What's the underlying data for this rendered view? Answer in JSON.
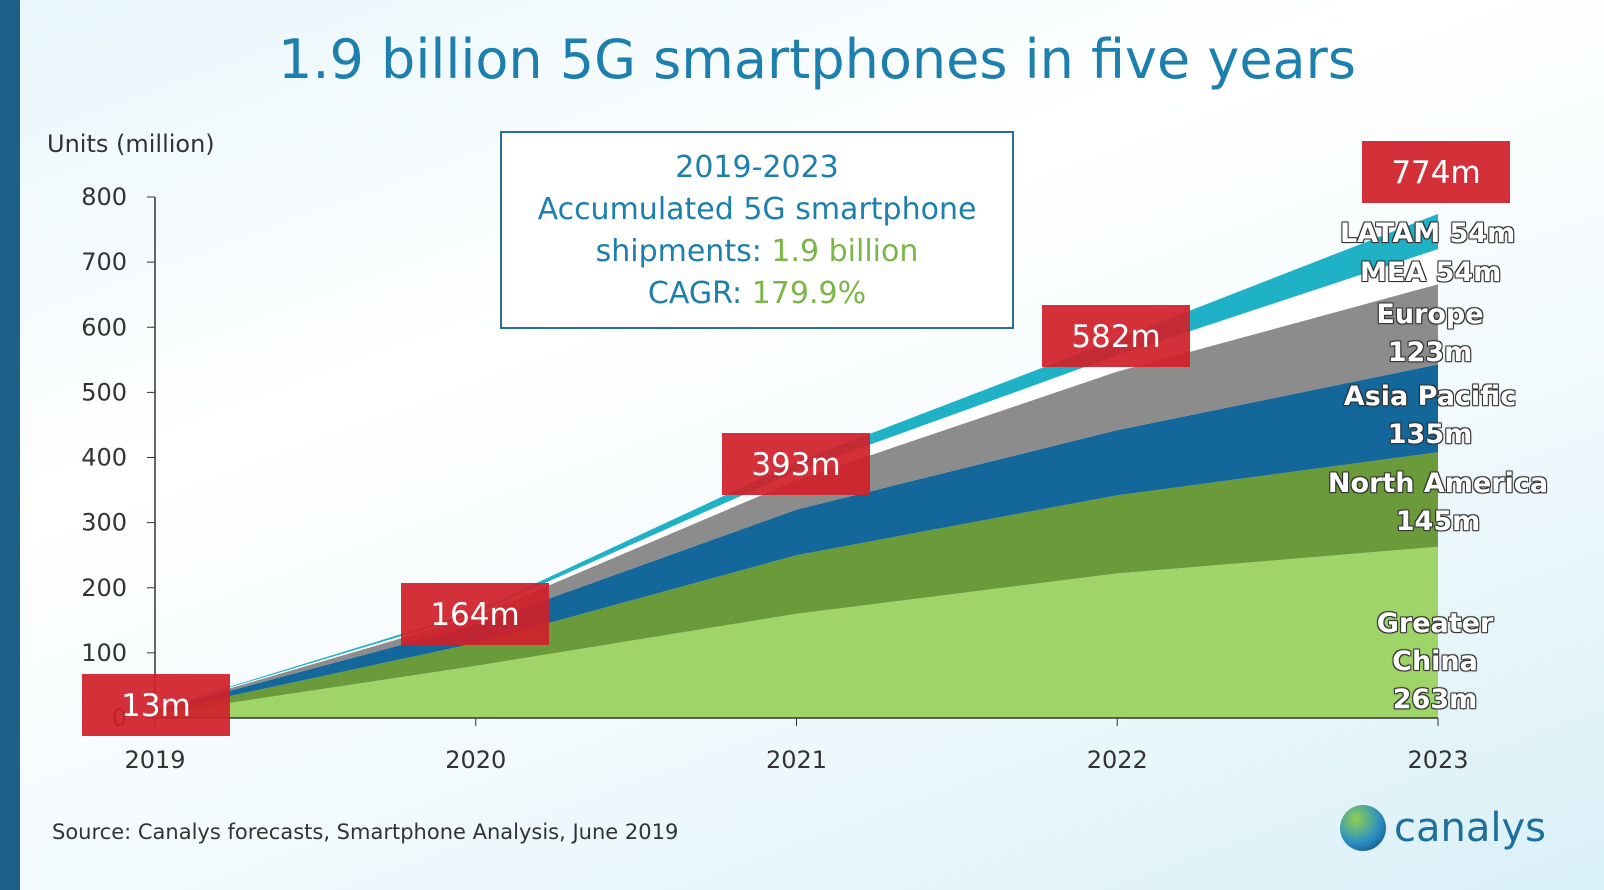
{
  "chart_data": {
    "type": "area",
    "stacked": true,
    "title": "1.9 billion 5G smartphones in five years",
    "ylabel": "Units (million)",
    "xlabel": "",
    "ylim": [
      0,
      800
    ],
    "yticks": [
      "0",
      "100",
      "200",
      "300",
      "400",
      "500",
      "600",
      "700",
      "800"
    ],
    "categories": [
      "2019",
      "2020",
      "2021",
      "2022",
      "2023"
    ],
    "series": [
      {
        "name": "Greater China",
        "color": "#9fd469",
        "values": [
          6,
          80,
          160,
          222,
          263
        ],
        "label": "Greater China",
        "value_label": "263m"
      },
      {
        "name": "North America",
        "color": "#6a9a3a",
        "values": [
          3,
          35,
          90,
          120,
          145
        ],
        "label": "North America",
        "value_label": "145m"
      },
      {
        "name": "Asia Pacific",
        "color": "#14679a",
        "values": [
          2,
          28,
          70,
          100,
          135
        ],
        "label": "Asia Pacific",
        "value_label": "135m"
      },
      {
        "name": "Europe",
        "color": "#8c8c8c",
        "values": [
          1,
          13,
          45,
          90,
          123
        ],
        "label": "Europe",
        "value_label": "123m"
      },
      {
        "name": "MEA",
        "color": "#ffffff",
        "values": [
          0.5,
          4,
          14,
          25,
          54
        ],
        "label": "MEA 54m"
      },
      {
        "name": "LATAM",
        "color": "#1fb1c6",
        "values": [
          0.5,
          4,
          14,
          25,
          54
        ],
        "label": "LATAM 54m"
      }
    ],
    "totals": [
      13,
      164,
      393,
      582,
      774
    ],
    "total_labels": [
      "13m",
      "164m",
      "393m",
      "582m",
      "774m"
    ],
    "total_label_color": "#d0202a"
  },
  "infobox": {
    "line1": "2019-2023",
    "line2": "Accumulated 5G smartphone",
    "line3a": "shipments: ",
    "line3b": "1.9 billion",
    "line4a": "CAGR: ",
    "line4b": "179.9%"
  },
  "source": "Source: Canalys forecasts, Smartphone Analysis, June 2019",
  "logo": "canalys"
}
